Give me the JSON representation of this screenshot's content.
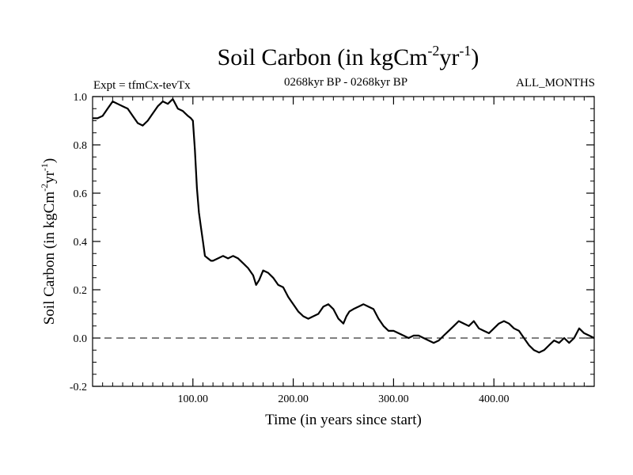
{
  "chart_data": {
    "type": "line",
    "title": "Soil Carbon (in kgCm",
    "title_sup1": "-2",
    "title_mid": "yr",
    "title_sup2": "-1",
    "title_end": ")",
    "subtitle_left": "Expt = tfmCx-tevTx",
    "subtitle_center": "0268kyr BP - 0268kyr BP",
    "subtitle_right": "ALL_MONTHS",
    "xlabel": "Time (in years since start)",
    "ylabel_main": "Soil Carbon (in kgCm",
    "ylabel_sup1": "-2",
    "ylabel_mid": "yr",
    "ylabel_sup2": "-1",
    "ylabel_end": ")",
    "xlim": [
      0,
      500
    ],
    "ylim": [
      -0.2,
      1.0
    ],
    "x_ticks": [
      100,
      200,
      300,
      400
    ],
    "x_tick_labels": [
      "100.00",
      "200.00",
      "300.00",
      "400.00"
    ],
    "y_ticks": [
      -0.2,
      0.0,
      0.2,
      0.4,
      0.6,
      0.8,
      1.0
    ],
    "y_tick_labels": [
      "-0.2",
      "0.0",
      "0.2",
      "0.4",
      "0.6",
      "0.8",
      "1.0"
    ],
    "zero_line": 0.0,
    "series": [
      {
        "name": "Soil Carbon",
        "x": [
          0,
          5,
          10,
          15,
          20,
          25,
          30,
          35,
          40,
          45,
          50,
          55,
          60,
          65,
          70,
          75,
          80,
          85,
          90,
          95,
          98,
          100,
          102,
          104,
          106,
          108,
          110,
          112,
          115,
          118,
          120,
          125,
          130,
          135,
          140,
          145,
          150,
          155,
          160,
          163,
          166,
          170,
          175,
          180,
          185,
          190,
          195,
          200,
          205,
          210,
          215,
          220,
          225,
          230,
          235,
          240,
          245,
          250,
          253,
          256,
          260,
          265,
          270,
          275,
          280,
          285,
          290,
          295,
          300,
          305,
          310,
          315,
          320,
          325,
          330,
          335,
          340,
          345,
          350,
          355,
          360,
          365,
          370,
          375,
          380,
          385,
          390,
          395,
          400,
          405,
          410,
          415,
          420,
          425,
          430,
          435,
          440,
          445,
          450,
          455,
          460,
          465,
          470,
          475,
          480,
          485,
          490,
          495,
          500
        ],
        "y": [
          0.91,
          0.91,
          0.92,
          0.95,
          0.98,
          0.97,
          0.96,
          0.95,
          0.92,
          0.89,
          0.88,
          0.9,
          0.93,
          0.96,
          0.98,
          0.97,
          0.99,
          0.95,
          0.94,
          0.92,
          0.91,
          0.9,
          0.78,
          0.62,
          0.52,
          0.46,
          0.4,
          0.34,
          0.33,
          0.32,
          0.32,
          0.33,
          0.34,
          0.33,
          0.34,
          0.33,
          0.31,
          0.29,
          0.26,
          0.22,
          0.24,
          0.28,
          0.27,
          0.25,
          0.22,
          0.21,
          0.17,
          0.14,
          0.11,
          0.09,
          0.08,
          0.09,
          0.1,
          0.13,
          0.14,
          0.12,
          0.08,
          0.06,
          0.09,
          0.11,
          0.12,
          0.13,
          0.14,
          0.13,
          0.12,
          0.08,
          0.05,
          0.03,
          0.03,
          0.02,
          0.01,
          0.0,
          0.01,
          0.01,
          0.0,
          -0.01,
          -0.02,
          -0.01,
          0.01,
          0.03,
          0.05,
          0.07,
          0.06,
          0.05,
          0.07,
          0.04,
          0.03,
          0.02,
          0.04,
          0.06,
          0.07,
          0.06,
          0.04,
          0.03,
          0.0,
          -0.03,
          -0.05,
          -0.06,
          -0.05,
          -0.03,
          -0.01,
          -0.02,
          0.0,
          -0.02,
          0.0,
          0.04,
          0.02,
          0.01,
          0.0
        ]
      }
    ]
  }
}
